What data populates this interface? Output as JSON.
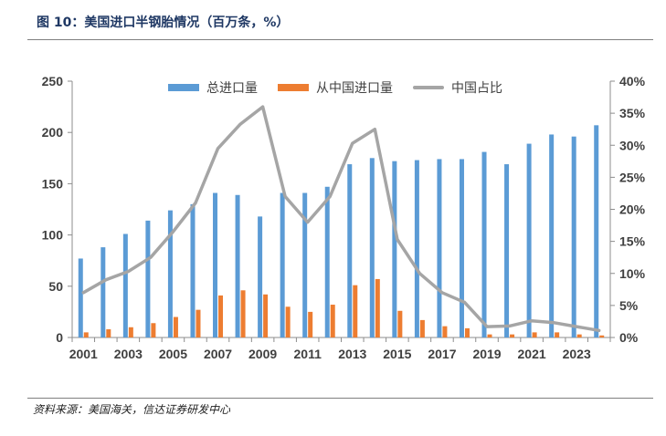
{
  "figure": {
    "title": "图 10：美国进口半钢胎情况（百万条，%）",
    "source": "资料来源：美国海关，信达证券研发中心"
  },
  "colors": {
    "total": "#5b9bd5",
    "china": "#ed7d31",
    "share": "#a5a5a5",
    "title": "#1f3864",
    "axis": "#595959"
  },
  "chart_data": {
    "type": "bar",
    "title": "图 10：美国进口半钢胎情况（百万条，%）",
    "x": [
      2001,
      2002,
      2003,
      2004,
      2005,
      2006,
      2007,
      2008,
      2009,
      2010,
      2011,
      2012,
      2013,
      2014,
      2015,
      2016,
      2017,
      2018,
      2019,
      2020,
      2021,
      2022,
      2023,
      2024
    ],
    "x_tick_labels": [
      "2001",
      "2003",
      "2005",
      "2007",
      "2009",
      "2011",
      "2013",
      "2015",
      "2017",
      "2019",
      "2021",
      "2023"
    ],
    "y_left": {
      "lim": [
        0,
        250
      ],
      "ticks": [
        "0",
        "50",
        "100",
        "150",
        "200",
        "250"
      ]
    },
    "y_right": {
      "lim": [
        0,
        40
      ],
      "ticks": [
        "0%",
        "5%",
        "10%",
        "15%",
        "20%",
        "25%",
        "30%",
        "35%",
        "40%"
      ]
    },
    "series": [
      {
        "name": "总进口量",
        "type": "bar",
        "axis": "left",
        "values": [
          77,
          88,
          101,
          114,
          124,
          130,
          141,
          139,
          118,
          141,
          141,
          147,
          169,
          175,
          172,
          173,
          174,
          174,
          181,
          169,
          189,
          198,
          196,
          207
        ]
      },
      {
        "name": "从中国进口量",
        "type": "bar",
        "axis": "left",
        "values": [
          5,
          8,
          10,
          14,
          20,
          27,
          41,
          46,
          42,
          30,
          25,
          32,
          51,
          57,
          26,
          17,
          11,
          9,
          3,
          3,
          5,
          5,
          3,
          2
        ]
      },
      {
        "name": "中国占比",
        "type": "line",
        "axis": "right",
        "values": [
          7,
          9,
          10.3,
          12.5,
          16.5,
          21,
          29.5,
          33.3,
          36,
          22,
          18,
          22,
          30.3,
          32.5,
          15.3,
          10,
          7,
          5.5,
          1.7,
          1.8,
          2.6,
          2.3,
          1.7,
          1.1
        ]
      }
    ],
    "legend_position": "top",
    "grid": false
  }
}
